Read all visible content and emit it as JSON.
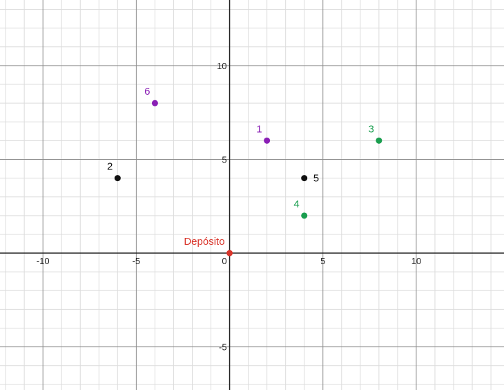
{
  "chart_data": {
    "type": "scatter",
    "title": "",
    "xlabel": "",
    "ylabel": "",
    "xlim": [
      -12.3,
      14.7
    ],
    "ylim": [
      -7.3,
      13.5
    ],
    "grid": true,
    "x_ticks": [
      -10,
      -5,
      0,
      5,
      10
    ],
    "y_ticks": [
      -5,
      5,
      10
    ],
    "x_tick_labels": [
      "-10",
      "-5",
      "0",
      "5",
      "10"
    ],
    "y_tick_labels": [
      "-5",
      "5",
      "10"
    ],
    "points": [
      {
        "label": "Depósito",
        "x": 0,
        "y": 0,
        "color": "#d9352b",
        "label_pos": "top-left"
      },
      {
        "label": "1",
        "x": 2,
        "y": 6,
        "color": "#8a1fb5",
        "label_pos": "top-left"
      },
      {
        "label": "2",
        "x": -6,
        "y": 4,
        "color": "#111111",
        "label_pos": "top-left"
      },
      {
        "label": "3",
        "x": 8,
        "y": 6,
        "color": "#1a9e4f",
        "label_pos": "top-left"
      },
      {
        "label": "4",
        "x": 4,
        "y": 2,
        "color": "#1a9e4f",
        "label_pos": "top-left"
      },
      {
        "label": "5",
        "x": 4,
        "y": 4,
        "color": "#111111",
        "label_pos": "right"
      },
      {
        "label": "6",
        "x": -4,
        "y": 8,
        "color": "#8a1fb5",
        "label_pos": "top-left"
      }
    ]
  }
}
